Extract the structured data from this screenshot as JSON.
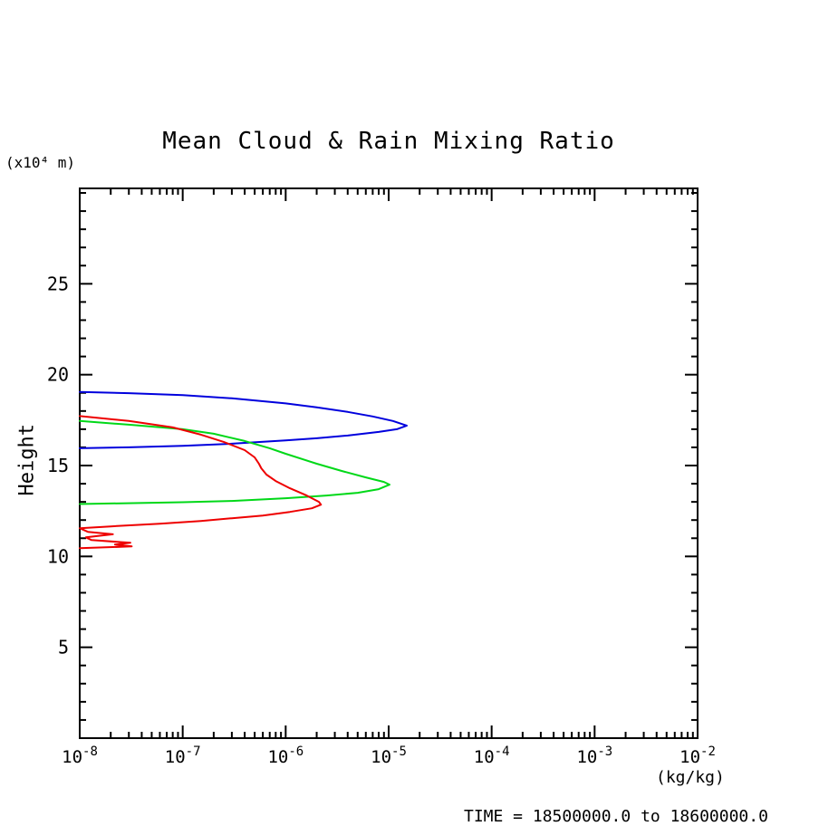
{
  "page": {
    "background": "#ffffff"
  },
  "title": "Mean Cloud & Rain Mixing Ratio",
  "y_axis_unit": "(x10⁴ m)",
  "y_axis_label": "Height",
  "x_axis_unit": "(kg/kg)",
  "footer_time": "TIME = 18500000.0 to 18600000.0",
  "chart_data": {
    "type": "line",
    "title": "Mean Cloud & Rain Mixing Ratio",
    "xlabel": "(kg/kg)",
    "ylabel": "Height (x10^4 m)",
    "x_scale": "log10",
    "x_range_exp": [
      -8,
      -2
    ],
    "x_major_ticks_exp": [
      -8,
      -7,
      -6,
      -5,
      -4,
      -3,
      -2
    ],
    "y_range": [
      0,
      30.25
    ],
    "y_major_ticks": [
      5,
      10,
      15,
      20,
      25
    ],
    "y_minor_step": 1,
    "grid": false,
    "legend": "none",
    "axis_color": "#000000",
    "annotation": "TIME = 18500000.0 to 18600000.0",
    "series": [
      {
        "name": "blue-profile",
        "color": "#0000dd",
        "points": [
          [
            1e-08,
            19.05
          ],
          [
            3e-08,
            18.98
          ],
          [
            1e-07,
            18.88
          ],
          [
            3e-07,
            18.7
          ],
          [
            1e-06,
            18.42
          ],
          [
            2e-06,
            18.2
          ],
          [
            4e-06,
            17.95
          ],
          [
            7e-06,
            17.7
          ],
          [
            1.1e-05,
            17.45
          ],
          [
            1.5e-05,
            17.2
          ],
          [
            1.2e-05,
            17.0
          ],
          [
            8e-06,
            16.85
          ],
          [
            4e-06,
            16.65
          ],
          [
            2e-06,
            16.5
          ],
          [
            1e-06,
            16.38
          ],
          [
            3e-07,
            16.2
          ],
          [
            1e-07,
            16.08
          ],
          [
            3e-08,
            16.0
          ],
          [
            1e-08,
            15.95
          ]
        ]
      },
      {
        "name": "green-profile",
        "color": "#00d818",
        "points": [
          [
            1e-08,
            17.45
          ],
          [
            3e-08,
            17.25
          ],
          [
            1e-07,
            17.0
          ],
          [
            2e-07,
            16.75
          ],
          [
            4e-07,
            16.35
          ],
          [
            7e-07,
            15.95
          ],
          [
            1e-06,
            15.65
          ],
          [
            2e-06,
            15.1
          ],
          [
            3.5e-06,
            14.7
          ],
          [
            6e-06,
            14.35
          ],
          [
            9e-06,
            14.1
          ],
          [
            1.02e-05,
            13.95
          ],
          [
            8e-06,
            13.7
          ],
          [
            5e-06,
            13.5
          ],
          [
            2.5e-06,
            13.35
          ],
          [
            1e-06,
            13.2
          ],
          [
            3e-07,
            13.05
          ],
          [
            1e-07,
            12.98
          ],
          [
            1e-08,
            12.88
          ]
        ]
      },
      {
        "name": "red-profile",
        "color": "#ee0000",
        "points": [
          [
            1e-08,
            17.72
          ],
          [
            3e-08,
            17.45
          ],
          [
            8e-08,
            17.1
          ],
          [
            1.5e-07,
            16.7
          ],
          [
            2.5e-07,
            16.3
          ],
          [
            4e-07,
            15.85
          ],
          [
            5e-07,
            15.45
          ],
          [
            5.5e-07,
            15.1
          ],
          [
            5.8e-07,
            14.85
          ],
          [
            6.5e-07,
            14.5
          ],
          [
            8e-07,
            14.15
          ],
          [
            1.1e-06,
            13.75
          ],
          [
            1.6e-06,
            13.35
          ],
          [
            2.1e-06,
            13.0
          ],
          [
            2.2e-06,
            12.85
          ],
          [
            1.8e-06,
            12.65
          ],
          [
            1.1e-06,
            12.45
          ],
          [
            6e-07,
            12.25
          ],
          [
            3e-07,
            12.1
          ],
          [
            1.5e-07,
            11.95
          ],
          [
            6e-08,
            11.8
          ],
          [
            2e-08,
            11.65
          ],
          [
            1e-08,
            11.55
          ],
          [
            1.2e-08,
            11.35
          ],
          [
            2.1e-08,
            11.22
          ],
          [
            1.15e-08,
            11.05
          ],
          [
            1.3e-08,
            10.9
          ],
          [
            3.1e-08,
            10.75
          ],
          [
            2.2e-08,
            10.65
          ],
          [
            3.2e-08,
            10.55
          ],
          [
            1e-08,
            10.45
          ]
        ]
      }
    ]
  }
}
